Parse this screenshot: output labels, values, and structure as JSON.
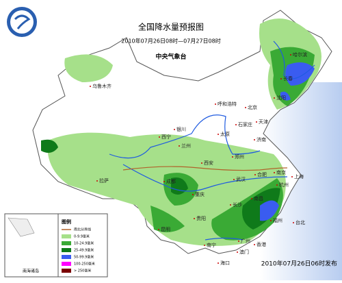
{
  "header": {
    "title": "全国降水量预报图",
    "subtitle": "2010年07月26日08时—07月27日08时",
    "agency": "中央气象台"
  },
  "footer": "2010年07月26日06时发布",
  "inset_label": "南海诸岛",
  "legend": {
    "title": "图例",
    "items": [
      {
        "label": "南北分界线",
        "color": "#b0622a"
      },
      {
        "label": "0-9.9毫米",
        "color": "#a6e08a"
      },
      {
        "label": "10-24.9毫米",
        "color": "#3aaa35"
      },
      {
        "label": "25-49.9毫米",
        "color": "#0f7a1a"
      },
      {
        "label": "50-99.9毫米",
        "color": "#3a5cf0"
      },
      {
        "label": "100-250毫米",
        "color": "#ff00ff"
      },
      {
        "label": "> 250毫米",
        "color": "#7a0000"
      }
    ]
  },
  "cities": [
    "哈尔滨",
    "长春",
    "沈阳",
    "乌鲁木齐",
    "呼和浩特",
    "北京",
    "天津",
    "石家庄",
    "银川",
    "太原",
    "济南",
    "西宁",
    "兰州",
    "郑州",
    "西安",
    "拉萨",
    "成都",
    "武汉",
    "合肥",
    "南京",
    "上海",
    "杭州",
    "重庆",
    "长沙",
    "南昌",
    "福州",
    "贵阳",
    "昆明",
    "台北",
    "广州",
    "南宁",
    "香港",
    "澳门",
    "海口"
  ]
}
